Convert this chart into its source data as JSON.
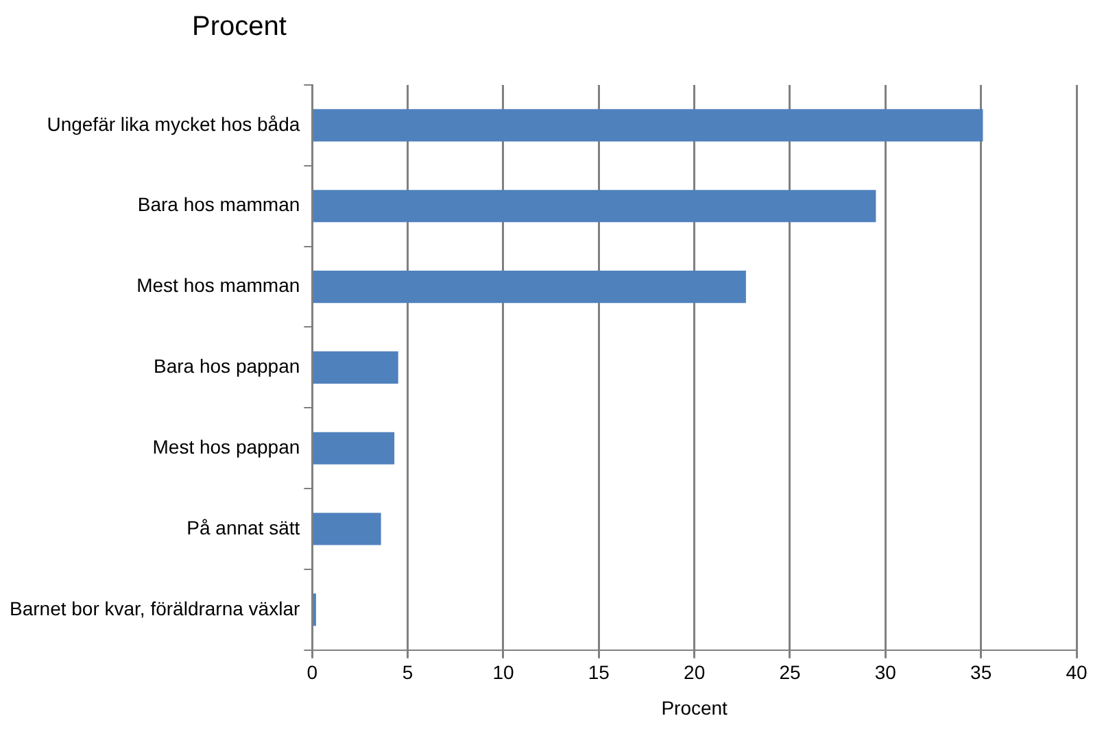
{
  "chart_data": {
    "type": "bar",
    "orientation": "horizontal",
    "title": "Procent",
    "xlabel": "Procent",
    "categories": [
      "Ungefär lika mycket hos båda",
      "Bara hos mamman",
      "Mest hos mamman",
      "Bara hos pappan",
      "Mest hos pappan",
      "På annat sätt",
      "Barnet bor kvar, föräldrarna växlar"
    ],
    "values": [
      35.1,
      29.5,
      22.7,
      4.5,
      4.3,
      3.6,
      0.2
    ],
    "color": "#4f81bd",
    "xlim": [
      0,
      40
    ],
    "xticks": [
      0,
      5,
      10,
      15,
      20,
      25,
      30,
      35,
      40
    ],
    "grid": "x",
    "legend": false
  }
}
